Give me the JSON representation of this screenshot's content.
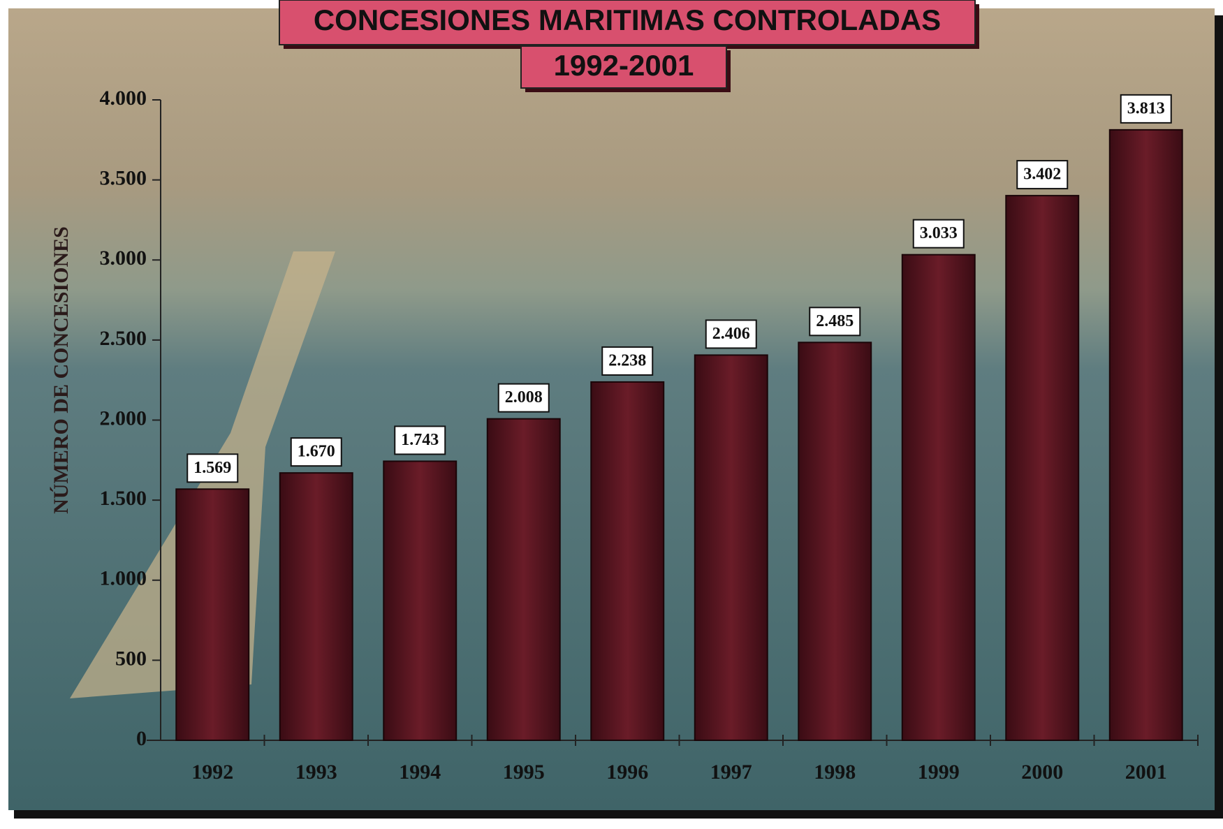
{
  "chart_data": {
    "type": "bar",
    "title": "CONCESIONES MARITIMAS CONTROLADAS",
    "subtitle": "1992-2001",
    "y_label": "NÚMERO DE CONCESIONES",
    "categories": [
      "1992",
      "1993",
      "1994",
      "1995",
      "1996",
      "1997",
      "1998",
      "1999",
      "2000",
      "2001"
    ],
    "values": [
      1569,
      1670,
      1743,
      2008,
      2238,
      2406,
      2485,
      3033,
      3402,
      3813
    ],
    "value_labels": [
      "1.569",
      "1.670",
      "1.743",
      "2.008",
      "2.238",
      "2.406",
      "2.485",
      "3.033",
      "3.402",
      "3.813"
    ],
    "color": "#5a1420",
    "ylim": [
      0,
      4000
    ],
    "yticks": [
      0,
      500,
      {
        "value": 1000,
        "label": "1.000"
      },
      {
        "value": 1500,
        "label": "1.500"
      },
      {
        "value": 2000,
        "label": "2.000"
      },
      {
        "value": 2500,
        "label": "2.500"
      },
      {
        "value": 3000,
        "label": "3.000"
      },
      {
        "value": 3500,
        "label": "3.500"
      },
      {
        "value": 4000,
        "label": "4.000"
      }
    ]
  }
}
